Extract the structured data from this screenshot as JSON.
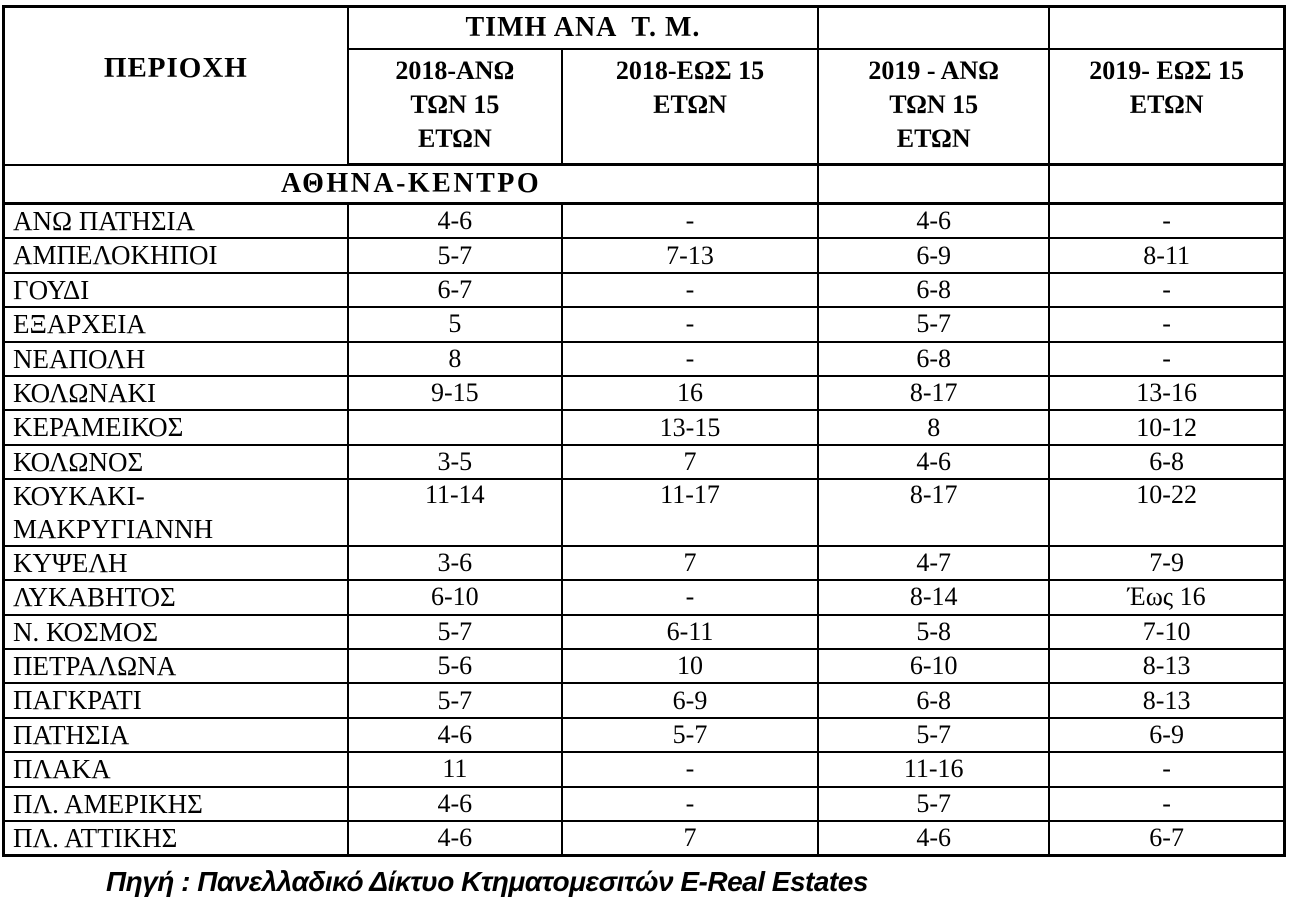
{
  "table": {
    "corner_header": "ΠΕΡΙΟΧΗ",
    "group_header": "ΤΙΜΗ ΑΝΑ  Τ. Μ.",
    "col_headers": [
      "2018-ΑΝΩ\nΤΩΝ 15\nΕΤΩΝ",
      "2018-ΕΩΣ 15\nΕΤΩΝ",
      "2019 - ΑΝΩ\nΤΩΝ 15\nΕΤΩΝ",
      "2019- ΕΩΣ 15\nΕΤΩΝ"
    ],
    "section_header": "ΑΘΗΝΑ-ΚΕΝΤΡΟ",
    "rows": [
      {
        "area": "ΑΝΩ ΠΑΤΗΣΙΑ",
        "values": [
          "4-6",
          "-",
          "4-6",
          "-"
        ]
      },
      {
        "area": "ΑΜΠΕΛΟΚΗΠΟΙ",
        "values": [
          "5-7",
          "7-13",
          "6-9",
          "8-11"
        ]
      },
      {
        "area": "ΓΟΥΔΙ",
        "values": [
          "6-7",
          "-",
          "6-8",
          "-"
        ]
      },
      {
        "area": "ΕΞΑΡΧΕΙΑ",
        "values": [
          "5",
          "-",
          "5-7",
          "-"
        ]
      },
      {
        "area": "ΝΕΑΠΟΛΗ",
        "values": [
          "8",
          "-",
          "6-8",
          "-"
        ]
      },
      {
        "area": "ΚΟΛΩΝΑΚΙ",
        "values": [
          "9-15",
          "16",
          "8-17",
          "13-16"
        ]
      },
      {
        "area": "ΚΕΡΑΜΕΙΚΟΣ",
        "values": [
          "",
          "13-15",
          "8",
          "10-12"
        ]
      },
      {
        "area": "ΚΟΛΩΝΟΣ",
        "values": [
          "3-5",
          "7",
          "4-6",
          "6-8"
        ]
      },
      {
        "area": "ΚΟΥΚΑΚΙ-\nΜΑΚΡΥΓΙΑΝΝΗ",
        "values": [
          "11-14",
          "11-17",
          "8-17",
          "10-22"
        ]
      },
      {
        "area": "ΚΥΨΕΛΗ",
        "values": [
          "3-6",
          "7",
          "4-7",
          "7-9"
        ]
      },
      {
        "area": "ΛΥΚΑΒΗΤΟΣ",
        "values": [
          "6-10",
          "-",
          "8-14",
          "Έως 16"
        ]
      },
      {
        "area": "Ν. ΚΟΣΜΟΣ",
        "values": [
          "5-7",
          "6-11",
          "5-8",
          "7-10"
        ]
      },
      {
        "area": "ΠΕΤΡΑΛΩΝΑ",
        "values": [
          "5-6",
          "10",
          "6-10",
          "8-13"
        ]
      },
      {
        "area": "ΠΑΓΚΡΑΤΙ",
        "values": [
          "5-7",
          "6-9",
          "6-8",
          "8-13"
        ]
      },
      {
        "area": "ΠΑΤΗΣΙΑ",
        "values": [
          "4-6",
          "5-7",
          "5-7",
          "6-9"
        ]
      },
      {
        "area": "ΠΛΑΚΑ",
        "values": [
          "11",
          "-",
          "11-16",
          "-"
        ]
      },
      {
        "area": "ΠΛ. ΑΜΕΡΙΚΗΣ",
        "values": [
          "4-6",
          "-",
          "5-7",
          "-"
        ]
      },
      {
        "area": "ΠΛ. ΑΤΤΙΚΗΣ",
        "values": [
          "4-6",
          "7",
          "4-6",
          "6-7"
        ]
      }
    ]
  },
  "footer": {
    "source": "Πηγή : Πανελλαδικό Δίκτυο Κτηματομεσιτών E-Real Estates"
  },
  "colors": {
    "text": "#000000",
    "border": "#000000",
    "background": "#ffffff"
  }
}
